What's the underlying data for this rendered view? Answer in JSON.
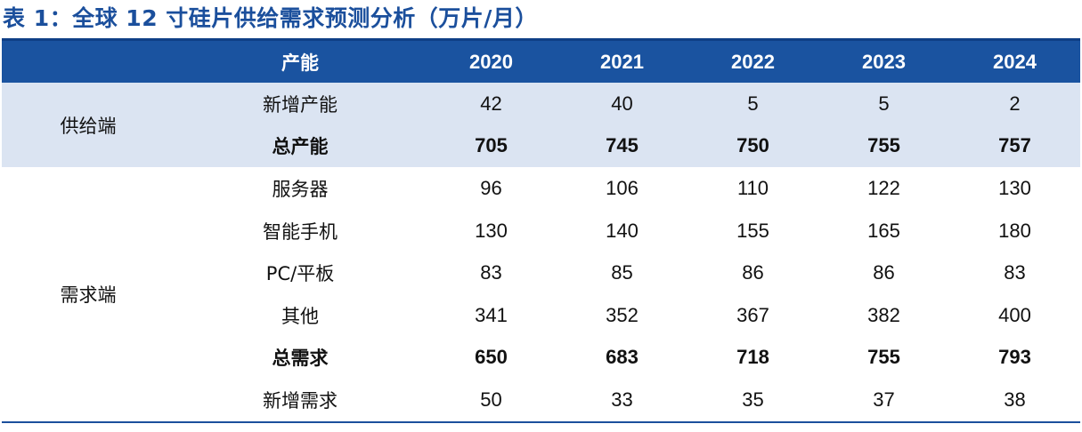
{
  "title": "表 1：全球 12 寸硅片供给需求预测分析（万片/月）",
  "header": {
    "capacity_label": "产能",
    "years": [
      "2020",
      "2021",
      "2022",
      "2023",
      "2024"
    ]
  },
  "groups": {
    "supply": "供给端",
    "demand": "需求端"
  },
  "rows": {
    "new_capacity": {
      "label": "新增产能",
      "values": [
        "42",
        "40",
        "5",
        "5",
        "2"
      ]
    },
    "total_capacity": {
      "label": "总产能",
      "values": [
        "705",
        "745",
        "750",
        "755",
        "757"
      ]
    },
    "server": {
      "label": "服务器",
      "values": [
        "96",
        "106",
        "110",
        "122",
        "130"
      ]
    },
    "smartphone": {
      "label": "智能手机",
      "values": [
        "130",
        "140",
        "155",
        "165",
        "180"
      ]
    },
    "pc_tablet": {
      "label": "PC/平板",
      "values": [
        "83",
        "85",
        "86",
        "86",
        "83"
      ]
    },
    "other": {
      "label": "其他",
      "values": [
        "341",
        "352",
        "367",
        "382",
        "400"
      ]
    },
    "total_demand": {
      "label": "总需求",
      "values": [
        "650",
        "683",
        "718",
        "755",
        "793"
      ]
    },
    "new_demand": {
      "label": "新增需求",
      "values": [
        "50",
        "33",
        "35",
        "37",
        "38"
      ]
    }
  },
  "colors": {
    "title": "#1b4f9c",
    "header_bg": "#1a53a0",
    "supply_bg": "#dbe4f2"
  }
}
